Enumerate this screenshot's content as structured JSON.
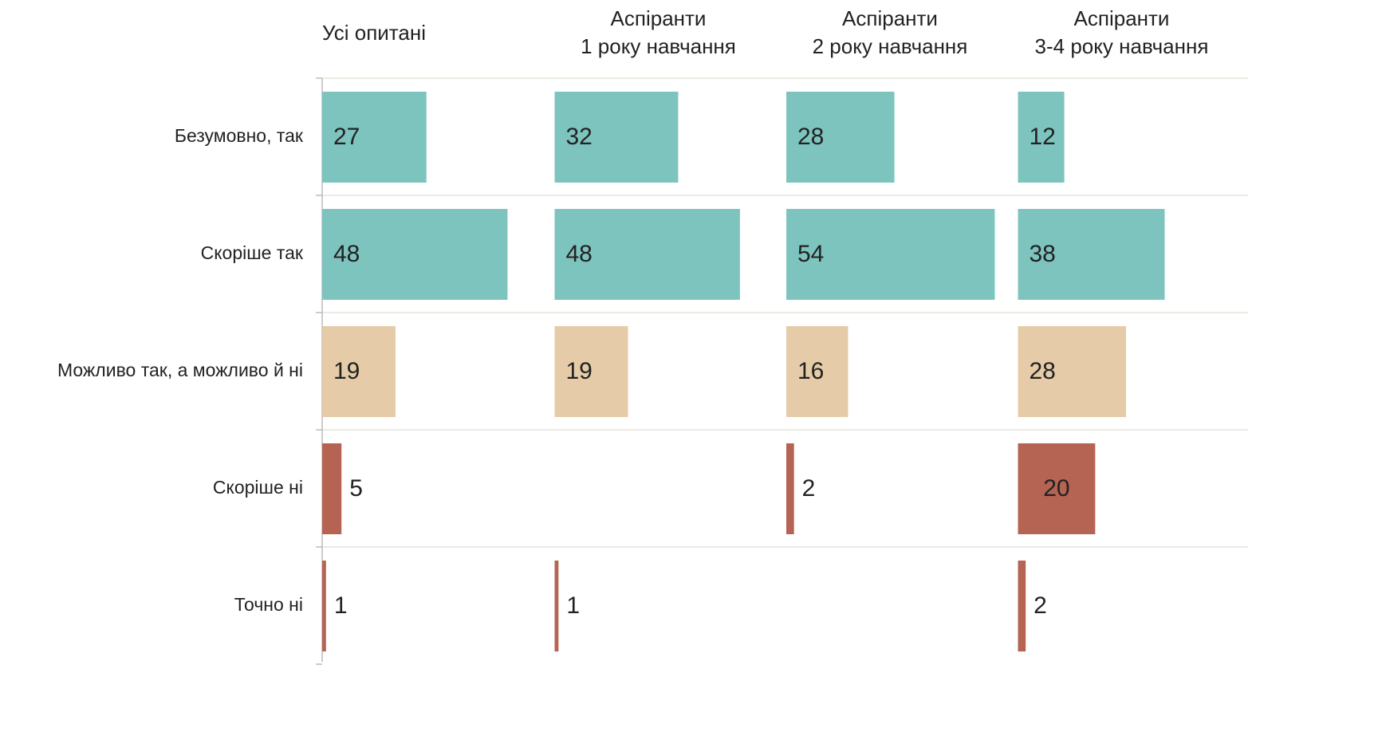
{
  "chart_data": {
    "type": "bar",
    "categories": [
      "Безумовно, так",
      "Скоріше так",
      "Можливо так, а можливо й ні",
      "Скоріше ні",
      "Точно ні"
    ],
    "colors": [
      "#7dc4bf",
      "#7dc4bf",
      "#e5cba8",
      "#b56353",
      "#b56353"
    ],
    "xlim": [
      0,
      60
    ],
    "series": [
      {
        "name": "Усі опитані",
        "values": [
          27,
          48,
          19,
          5,
          1
        ]
      },
      {
        "name": "Аспіранти\n1 року навчання",
        "values": [
          32,
          48,
          19,
          null,
          1
        ]
      },
      {
        "name": "Аспіранти\n2 року навчання",
        "values": [
          28,
          54,
          16,
          2,
          null
        ]
      },
      {
        "name": "Аспіранти\n3-4 року навчання",
        "values": [
          12,
          38,
          28,
          20,
          2
        ]
      }
    ]
  }
}
